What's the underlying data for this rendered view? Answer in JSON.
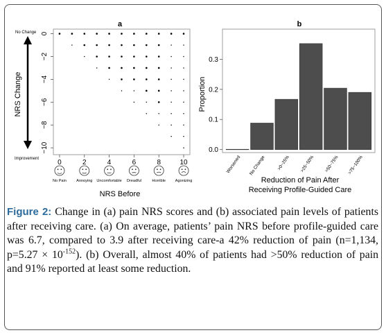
{
  "chart_data": [
    {
      "panel": "a",
      "type": "scatter",
      "xlabel": "NRS Before",
      "ylabel": "NRS Change",
      "x_ticks": [
        0,
        2,
        4,
        6,
        8,
        10
      ],
      "y_ticks": [
        "0",
        "−2",
        "−4",
        "−6",
        "−8",
        "−10"
      ],
      "y_top_label": "No Change",
      "y_bottom_label": "Improvement",
      "xlim": [
        -0.5,
        10.5
      ],
      "ylim": [
        -10.6,
        0.4
      ],
      "face_labels": [
        "No Pain",
        "Annoying",
        "Uncomfortable",
        "Dreadful",
        "Horrible",
        "Agonizing"
      ],
      "points": [
        [
          0,
          0,
          2
        ],
        [
          1,
          0,
          2
        ],
        [
          2,
          0,
          2
        ],
        [
          3,
          0,
          2
        ],
        [
          4,
          0,
          2
        ],
        [
          5,
          0,
          2
        ],
        [
          6,
          0,
          2
        ],
        [
          7,
          0,
          2
        ],
        [
          8,
          0,
          2
        ],
        [
          9,
          0,
          2
        ],
        [
          10,
          0,
          2
        ],
        [
          1,
          -1,
          1
        ],
        [
          2,
          -1,
          2
        ],
        [
          3,
          -1,
          2
        ],
        [
          4,
          -1,
          2
        ],
        [
          5,
          -1,
          2
        ],
        [
          6,
          -1,
          2
        ],
        [
          7,
          -1,
          2
        ],
        [
          8,
          -1,
          2
        ],
        [
          9,
          -1,
          1
        ],
        [
          10,
          -1,
          1
        ],
        [
          2,
          -2,
          1
        ],
        [
          3,
          -2,
          2
        ],
        [
          4,
          -2,
          2
        ],
        [
          5,
          -2,
          2
        ],
        [
          6,
          -2,
          2
        ],
        [
          7,
          -2,
          2
        ],
        [
          8,
          -2,
          2
        ],
        [
          9,
          -2,
          1
        ],
        [
          10,
          -2,
          1
        ],
        [
          3,
          -3,
          1
        ],
        [
          4,
          -3,
          2
        ],
        [
          5,
          -3,
          2
        ],
        [
          6,
          -3,
          2
        ],
        [
          7,
          -3,
          2
        ],
        [
          8,
          -3,
          2
        ],
        [
          9,
          -3,
          1
        ],
        [
          10,
          -3,
          1
        ],
        [
          4,
          -4,
          1
        ],
        [
          5,
          -4,
          2
        ],
        [
          6,
          -4,
          2
        ],
        [
          7,
          -4,
          2
        ],
        [
          8,
          -4,
          2
        ],
        [
          9,
          -4,
          1
        ],
        [
          10,
          -4,
          1
        ],
        [
          5,
          -5,
          1
        ],
        [
          6,
          -5,
          1
        ],
        [
          7,
          -5,
          2
        ],
        [
          8,
          -5,
          2
        ],
        [
          9,
          -5,
          1
        ],
        [
          10,
          -5,
          1
        ],
        [
          6,
          -6,
          1
        ],
        [
          7,
          -6,
          1
        ],
        [
          8,
          -6,
          2
        ],
        [
          9,
          -6,
          1
        ],
        [
          10,
          -6,
          1
        ],
        [
          7,
          -7,
          1
        ],
        [
          8,
          -7,
          1
        ],
        [
          9,
          -7,
          1
        ],
        [
          10,
          -7,
          1
        ],
        [
          8,
          -8,
          1
        ],
        [
          9,
          -8,
          1
        ],
        [
          10,
          -8,
          1
        ],
        [
          9,
          -9,
          1
        ],
        [
          10,
          -9,
          1
        ],
        [
          10,
          -10,
          1
        ]
      ]
    },
    {
      "panel": "b",
      "type": "bar",
      "categories": [
        "Worsened",
        "No Change",
        ">0~25%",
        ">25~50%",
        ">50~75%",
        ">75~100%"
      ],
      "values": [
        0.001,
        0.088,
        0.167,
        0.352,
        0.204,
        0.19
      ],
      "ylabel": "Proportion",
      "xlabel_line1": "Reduction of Pain After",
      "xlabel_line2": "Receiving Profile-Guided Care",
      "ylim": [
        -0.01,
        0.4
      ],
      "y_ticks": [
        "0.0",
        "0.1",
        "0.2",
        "0.3"
      ],
      "bar_color": "#4d4d4d"
    }
  ],
  "caption": {
    "figure_label": "Figure 2:",
    "text_a": "Change in (a) pain NRS scores and (b) associated pain levels of patients after receiving care. (a) On average, patients’ pain NRS before profile-guided care was 6.7, compared to 3.9 after receiving care-a 42% reduction of pain (n=1,134, p=5.27 × 10",
    "exponent": "-152",
    "text_b": "). (b) Overall, almost 40% of patients had >50% reduction of pain and 91% reported at least some reduction."
  }
}
